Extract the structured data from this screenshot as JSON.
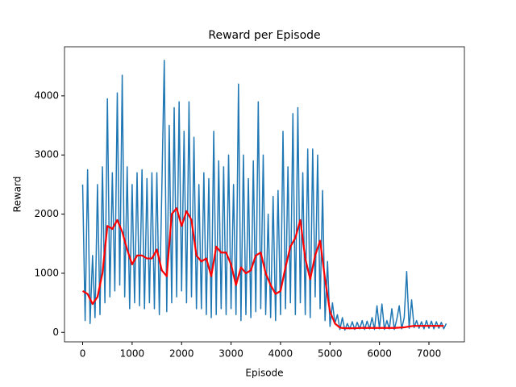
{
  "chart_data": {
    "type": "line",
    "title": "Reward per Episode",
    "x_label": "Episode",
    "y_label": "Reward",
    "xlim": [
      -367,
      7717
    ],
    "ylim": [
      -160,
      4830
    ],
    "xticks": [
      0,
      1000,
      2000,
      3000,
      4000,
      5000,
      6000,
      7000
    ],
    "yticks": [
      0,
      1000,
      2000,
      3000,
      4000
    ],
    "grid": false,
    "series": [
      {
        "color": "#1f77b4",
        "x": [
          0,
          50,
          100,
          150,
          200,
          250,
          300,
          350,
          400,
          450,
          500,
          550,
          600,
          650,
          700,
          750,
          800,
          850,
          900,
          950,
          1000,
          1050,
          1100,
          1150,
          1200,
          1250,
          1300,
          1350,
          1400,
          1450,
          1500,
          1550,
          1600,
          1650,
          1700,
          1750,
          1800,
          1850,
          1900,
          1950,
          2000,
          2050,
          2100,
          2150,
          2200,
          2250,
          2300,
          2350,
          2400,
          2450,
          2500,
          2550,
          2600,
          2650,
          2700,
          2750,
          2800,
          2850,
          2900,
          2950,
          3000,
          3050,
          3100,
          3150,
          3200,
          3250,
          3300,
          3350,
          3400,
          3450,
          3500,
          3550,
          3600,
          3650,
          3700,
          3750,
          3800,
          3850,
          3900,
          3950,
          4000,
          4050,
          4100,
          4150,
          4200,
          4250,
          4300,
          4350,
          4400,
          4450,
          4500,
          4550,
          4600,
          4650,
          4700,
          4750,
          4800,
          4850,
          4900,
          4950,
          5000,
          5050,
          5100,
          5150,
          5200,
          5250,
          5300,
          5350,
          5400,
          5450,
          5500,
          5550,
          5600,
          5650,
          5700,
          5750,
          5800,
          5850,
          5900,
          5950,
          6000,
          6050,
          6100,
          6150,
          6200,
          6250,
          6300,
          6350,
          6400,
          6450,
          6500,
          6550,
          6600,
          6650,
          6700,
          6750,
          6800,
          6850,
          6900,
          6950,
          7000,
          7050,
          7100,
          7150,
          7200,
          7250,
          7300,
          7350
        ],
        "values": [
          2500,
          200,
          2750,
          150,
          1300,
          250,
          2500,
          300,
          2800,
          500,
          3950,
          600,
          2700,
          700,
          4050,
          800,
          4350,
          600,
          2800,
          400,
          2500,
          500,
          2700,
          450,
          2750,
          400,
          2600,
          500,
          2700,
          400,
          2700,
          300,
          2400,
          4600,
          350,
          3500,
          500,
          3800,
          600,
          3900,
          700,
          3400,
          500,
          3900,
          600,
          3300,
          400,
          2500,
          400,
          2700,
          300,
          2600,
          250,
          3400,
          300,
          2900,
          400,
          2800,
          300,
          3000,
          400,
          2500,
          300,
          4200,
          200,
          3000,
          300,
          2600,
          250,
          2900,
          350,
          3900,
          400,
          3000,
          300,
          2000,
          250,
          2300,
          200,
          2400,
          300,
          3400,
          400,
          2800,
          500,
          3700,
          300,
          3800,
          500,
          2700,
          300,
          3100,
          250,
          3100,
          600,
          3000,
          400,
          2400,
          200,
          1200,
          100,
          500,
          150,
          300,
          50,
          250,
          40,
          150,
          60,
          180,
          50,
          170,
          60,
          200,
          50,
          190,
          60,
          250,
          50,
          450,
          60,
          480,
          50,
          200,
          60,
          400,
          50,
          220,
          450,
          60,
          250,
          1030,
          70,
          550,
          80,
          200,
          70,
          180,
          60,
          200,
          70,
          190,
          60,
          180,
          70,
          170,
          60,
          150
        ]
      },
      {
        "color": "#ff0000",
        "x": [
          0,
          100,
          200,
          300,
          400,
          500,
          600,
          700,
          800,
          900,
          1000,
          1100,
          1200,
          1300,
          1400,
          1500,
          1600,
          1700,
          1800,
          1900,
          2000,
          2100,
          2200,
          2300,
          2400,
          2500,
          2600,
          2700,
          2800,
          2900,
          3000,
          3100,
          3200,
          3300,
          3400,
          3500,
          3600,
          3700,
          3800,
          3900,
          4000,
          4100,
          4200,
          4300,
          4400,
          4500,
          4600,
          4700,
          4800,
          4900,
          5000,
          5100,
          5200,
          5300,
          5400,
          5500,
          5600,
          5700,
          5800,
          5900,
          6000,
          6100,
          6200,
          6300,
          6400,
          6500,
          6600,
          6700,
          6800,
          6900,
          7000,
          7100,
          7200,
          7300
        ],
        "values": [
          700,
          650,
          480,
          600,
          1000,
          1800,
          1750,
          1900,
          1700,
          1400,
          1150,
          1300,
          1300,
          1250,
          1250,
          1400,
          1050,
          950,
          2000,
          2100,
          1800,
          2050,
          1900,
          1300,
          1200,
          1250,
          950,
          1450,
          1350,
          1350,
          1150,
          800,
          1100,
          1000,
          1050,
          1300,
          1350,
          1000,
          800,
          650,
          700,
          1100,
          1450,
          1600,
          1900,
          1250,
          900,
          1300,
          1550,
          900,
          350,
          150,
          80,
          70,
          70,
          70,
          75,
          75,
          75,
          75,
          75,
          75,
          75,
          75,
          80,
          85,
          100,
          110,
          110,
          110,
          110,
          110,
          110,
          110
        ]
      }
    ]
  }
}
